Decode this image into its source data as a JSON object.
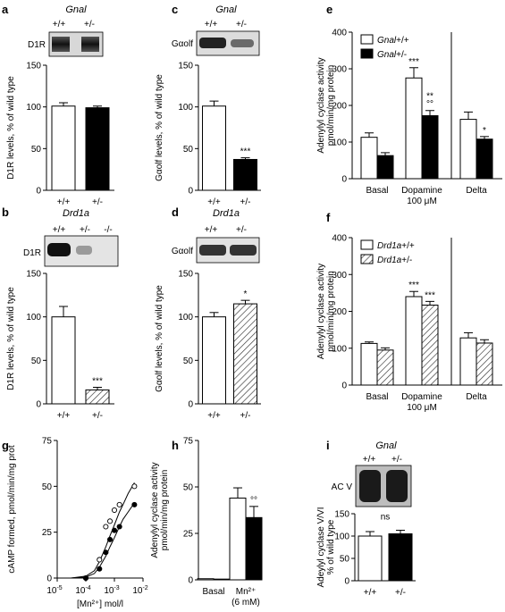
{
  "panels": {
    "a": {
      "letter": "a",
      "title": "Gnal",
      "blot": {
        "label": "D1R",
        "genotypes": [
          "+/+",
          "+/-"
        ]
      },
      "chart_data": {
        "type": "bar",
        "categories": [
          "+/+",
          "+/-"
        ],
        "values": [
          101,
          99
        ],
        "errors": [
          4,
          2
        ],
        "fills": [
          "white",
          "black"
        ],
        "ylabel": "D1R levels, % of wild type",
        "ylim": [
          0,
          150
        ],
        "yticks": [
          0,
          50,
          100,
          150
        ],
        "stars": [
          "",
          ""
        ]
      }
    },
    "b": {
      "letter": "b",
      "title": "Drd1a",
      "blot": {
        "label": "D1R",
        "genotypes": [
          "+/+",
          "+/-",
          "-/-"
        ]
      },
      "chart_data": {
        "type": "bar",
        "categories": [
          "+/+",
          "+/-"
        ],
        "values": [
          100,
          16
        ],
        "errors": [
          12,
          3
        ],
        "fills": [
          "white",
          "hatch"
        ],
        "ylabel": "D1R levels, % of wild type",
        "ylim": [
          0,
          150
        ],
        "yticks": [
          0,
          50,
          100,
          150
        ],
        "stars": [
          "",
          "***"
        ]
      }
    },
    "c": {
      "letter": "c",
      "title": "Gnal",
      "blot": {
        "label": "Gαolf",
        "genotypes": [
          "+/+",
          "+/-"
        ]
      },
      "chart_data": {
        "type": "bar",
        "categories": [
          "+/+",
          "+/-"
        ],
        "values": [
          101,
          37
        ],
        "errors": [
          6,
          2
        ],
        "fills": [
          "white",
          "black"
        ],
        "ylabel": "Gαolf levels, % of wild type",
        "ylim": [
          0,
          150
        ],
        "yticks": [
          0,
          50,
          100,
          150
        ],
        "stars": [
          "",
          "***"
        ]
      }
    },
    "d": {
      "letter": "d",
      "title": "Drd1a",
      "blot": {
        "label": "Gαolf",
        "genotypes": [
          "+/+",
          "+/-"
        ]
      },
      "chart_data": {
        "type": "bar",
        "categories": [
          "+/+",
          "+/-"
        ],
        "values": [
          100,
          115
        ],
        "errors": [
          5,
          4
        ],
        "fills": [
          "white",
          "hatch"
        ],
        "ylabel": "Gαolf levels, % of wild type",
        "ylim": [
          0,
          150
        ],
        "yticks": [
          0,
          50,
          100,
          150
        ],
        "stars": [
          "",
          "*"
        ]
      }
    },
    "e": {
      "letter": "e",
      "chart_data": {
        "type": "bar",
        "groups": [
          {
            "label": "Basal",
            "values": [
              113,
              63
            ],
            "errors": [
              12,
              8
            ],
            "stars": [
              "",
              ""
            ],
            "circles": [
              "",
              ""
            ]
          },
          {
            "label": "Dopamine",
            "sublabel": "100 μM",
            "values": [
              275,
              172
            ],
            "errors": [
              28,
              14
            ],
            "stars": [
              "***",
              "**"
            ],
            "circles": [
              "",
              "°°"
            ]
          },
          {
            "label": "Delta",
            "values": [
              162,
              108
            ],
            "errors": [
              20,
              7
            ],
            "stars": [
              "",
              "*"
            ],
            "circles": [
              "",
              ""
            ]
          }
        ],
        "series": [
          {
            "name": "Gnal+/+",
            "italic": "Gnal",
            "suffix": "+/+",
            "fill": "white"
          },
          {
            "name": "Gnal+/-",
            "italic": "Gnal",
            "suffix": "+/-",
            "fill": "black"
          }
        ],
        "ylabel": [
          "Adenylyl cyclase activity",
          "pmol/min/mg protein"
        ],
        "ylim": [
          0,
          400
        ],
        "yticks": [
          0,
          100,
          200,
          300,
          400
        ],
        "legend": "top-left"
      }
    },
    "f": {
      "letter": "f",
      "chart_data": {
        "type": "bar",
        "groups": [
          {
            "label": "Basal",
            "values": [
              113,
              95
            ],
            "errors": [
              4,
              6
            ],
            "stars": [
              "",
              ""
            ],
            "circles": [
              "",
              ""
            ]
          },
          {
            "label": "Dopamine",
            "sublabel": "100 μM",
            "values": [
              240,
              217
            ],
            "errors": [
              14,
              10
            ],
            "stars": [
              "***",
              "***"
            ],
            "circles": [
              "",
              ""
            ]
          },
          {
            "label": "Delta",
            "values": [
              128,
              114
            ],
            "errors": [
              14,
              9
            ],
            "stars": [
              "",
              ""
            ],
            "circles": [
              "",
              ""
            ]
          }
        ],
        "series": [
          {
            "name": "Drd1a+/+",
            "italic": "Drd1a",
            "suffix": "+/+",
            "fill": "white"
          },
          {
            "name": "Drd1a+/-",
            "italic": "Drd1a",
            "suffix": "+/-",
            "fill": "hatch"
          }
        ],
        "ylabel": [
          "Adenylyl cyclase activity",
          "pmol/min/mg protein"
        ],
        "ylim": [
          0,
          400
        ],
        "yticks": [
          0,
          100,
          200,
          300,
          400
        ],
        "legend": "top-left"
      }
    },
    "g": {
      "letter": "g",
      "chart_data": {
        "type": "scatter",
        "xscale": "log",
        "xlim": [
          1e-05,
          0.01
        ],
        "xtick_exponents": [
          -5,
          -4,
          -3,
          -2
        ],
        "xlabel": "[Mn²⁺] mol/l",
        "ylabel": "cAMP formed, pmol/min/mg prot",
        "ylim": [
          0,
          75
        ],
        "yticks": [
          0,
          25,
          50,
          75
        ],
        "series": [
          {
            "marker": "open",
            "x": [
              0.0001,
              0.0003,
              0.0005,
              0.0007,
              0.001,
              0.0015,
              0.005
            ],
            "y": [
              0,
              10,
              28,
              31,
              37,
              40,
              50
            ]
          },
          {
            "marker": "filled",
            "x": [
              0.0001,
              0.0003,
              0.0005,
              0.0007,
              0.001,
              0.0015,
              0.005
            ],
            "y": [
              0,
              5,
              14,
              21,
              26,
              28,
              40
            ]
          }
        ],
        "curves": [
          {
            "style": "open",
            "x": [
              3e-05,
              0.0001,
              0.0002,
              0.0003,
              0.0005,
              0.0007,
              0.001,
              0.0015,
              0.002,
              0.003,
              0.005
            ],
            "y": [
              0,
              1,
              4,
              9,
              17,
              23,
              29,
              36,
              40,
              46,
              52
            ]
          },
          {
            "style": "filled",
            "x": [
              3e-05,
              0.0001,
              0.0002,
              0.0003,
              0.0005,
              0.0007,
              0.001,
              0.0015,
              0.002,
              0.003,
              0.005
            ],
            "y": [
              0,
              0.5,
              2.5,
              6,
              12,
              17,
              22,
              28,
              32,
              36,
              41
            ]
          }
        ]
      }
    },
    "h": {
      "letter": "h",
      "chart_data": {
        "type": "bar",
        "groups": [
          {
            "label": "Basal",
            "values": [
              0.6,
              0.4
            ],
            "errors": [
              0,
              0
            ],
            "stars": [
              "",
              ""
            ],
            "circles": [
              "",
              ""
            ]
          },
          {
            "label": "Mn²⁺",
            "sublabel": "(6 mM)",
            "values": [
              44,
              33.5
            ],
            "errors": [
              5.5,
              6
            ],
            "stars": [
              "",
              ""
            ],
            "circles": [
              "",
              "°°"
            ]
          }
        ],
        "fills": [
          "white",
          "black"
        ],
        "ylabel": [
          "Adenylyl cyclase activity",
          "pmol/min/mg protein"
        ],
        "ylim": [
          0,
          75
        ],
        "yticks": [
          0,
          25,
          50,
          75
        ]
      }
    },
    "i": {
      "letter": "i",
      "title": "Gnal",
      "blot": {
        "label": "AC V",
        "genotypes": [
          "+/+",
          "+/-"
        ]
      },
      "annotation": "ns",
      "chart_data": {
        "type": "bar",
        "categories": [
          "+/+",
          "+/-"
        ],
        "values": [
          100,
          105
        ],
        "errors": [
          10,
          8
        ],
        "fills": [
          "white",
          "black"
        ],
        "ylabel": [
          "Adeylyl cyclase V/VI",
          "% of wild type"
        ],
        "ylim": [
          0,
          150
        ],
        "yticks": [
          0,
          50,
          100,
          150
        ]
      }
    }
  }
}
